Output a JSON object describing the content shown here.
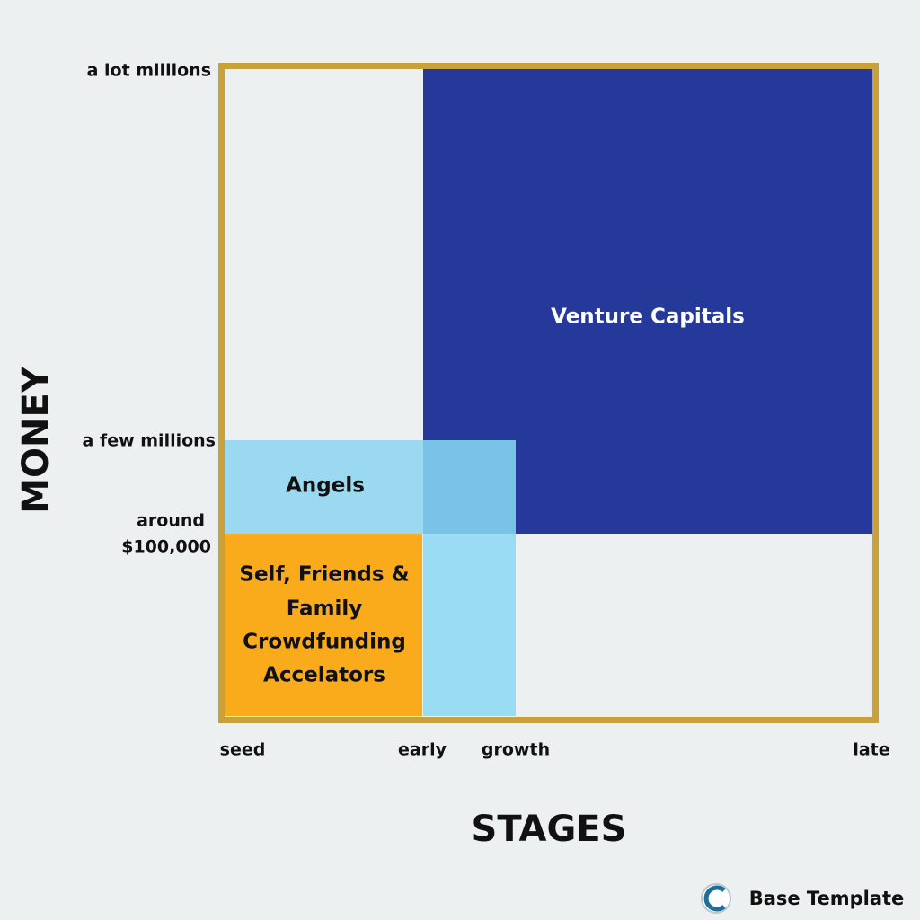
{
  "y_axis": {
    "title": "MONEY",
    "labels": [
      "a lot millions",
      "a few millions"
    ],
    "around_lines": [
      "around",
      "$100,000"
    ]
  },
  "x_axis": {
    "title": "STAGES",
    "labels": [
      "seed",
      "early",
      "growth",
      "late"
    ]
  },
  "regions": {
    "venture": "Venture Capitals",
    "angels": "Angels",
    "self_lines": [
      "Self, Friends &",
      "Family",
      "Crowdfunding",
      "Accelators"
    ]
  },
  "footer": {
    "brand": "Base Template"
  }
}
